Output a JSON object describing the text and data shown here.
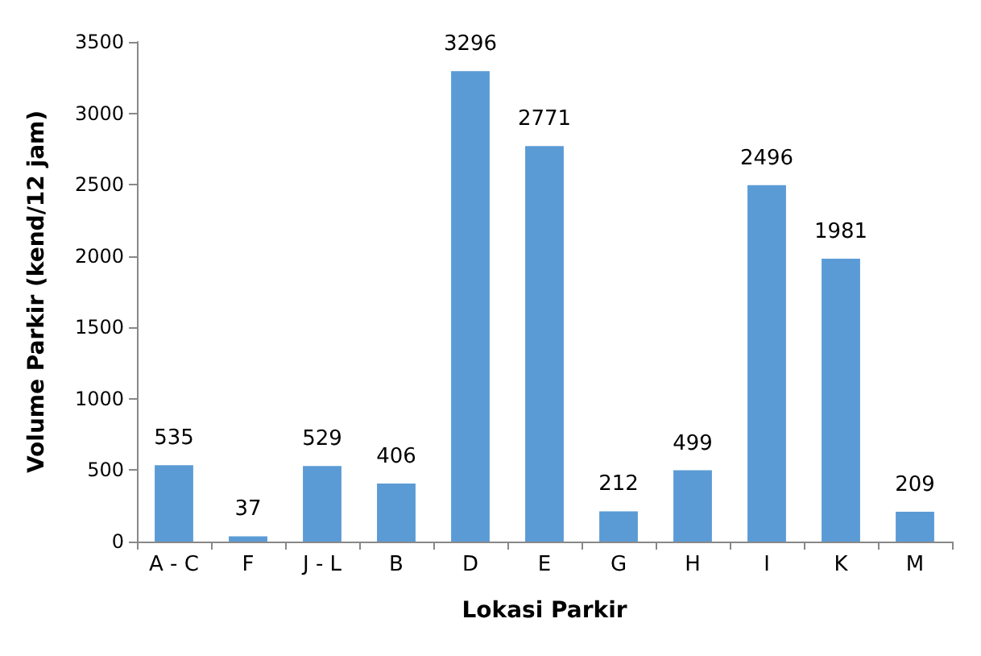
{
  "chart_data": {
    "type": "bar",
    "xlabel": "Lokasi Parkir",
    "ylabel": "Volume Parkir (kend/12 jam)",
    "categories": [
      "A - C",
      "F",
      "J - L",
      "B",
      "D",
      "E",
      "G",
      "H",
      "I",
      "K",
      "M"
    ],
    "values": [
      535,
      37,
      529,
      406,
      3296,
      2771,
      212,
      499,
      2496,
      1981,
      209
    ],
    "color": "#5b9bd5",
    "ylim": [
      0,
      3500
    ],
    "yticks": [
      0,
      500,
      1000,
      1500,
      2000,
      2500,
      3000,
      3500
    ],
    "grid": false,
    "data_labels": true
  }
}
